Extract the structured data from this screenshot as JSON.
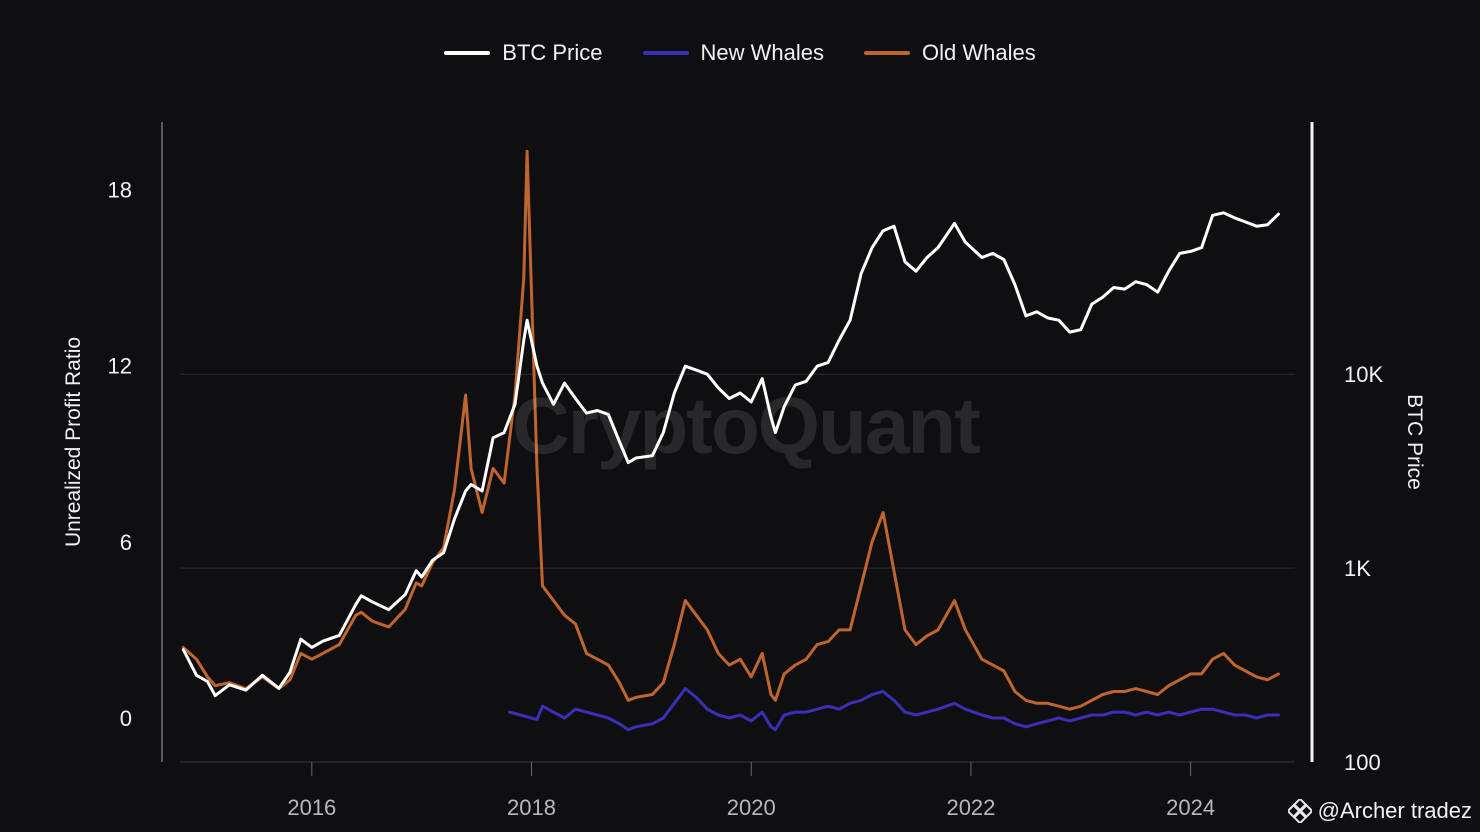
{
  "legend": {
    "items": [
      {
        "label": "BTC Price",
        "color": "#ffffff"
      },
      {
        "label": "New Whales",
        "color": "#3b2fb8"
      },
      {
        "label": "Old Whales",
        "color": "#c0652e"
      }
    ]
  },
  "watermark": "CryptoQuant",
  "credit": {
    "text": "@Archer tradez",
    "icon": "binance-diamond-icon"
  },
  "chart_data": {
    "type": "line",
    "xlabel": "",
    "ylabel": "Unrealized Profit Ratio",
    "y2label": "BTC Price",
    "x_ticks": [
      "2016",
      "2018",
      "2020",
      "2022",
      "2024"
    ],
    "y_ticks": [
      "0",
      "6",
      "12",
      "18"
    ],
    "y2_ticks": [
      "100",
      "1K",
      "10K"
    ],
    "xlim": [
      2014.8,
      2024.95
    ],
    "ylim": [
      -1.5,
      20.3
    ],
    "y2lim_log": [
      100,
      200000
    ],
    "y2_scale": "log",
    "grid": "horizontal",
    "legend_position": "top-center",
    "series": [
      {
        "name": "BTC Price",
        "color": "#ffffff",
        "axis": "right",
        "x": [
          2014.83,
          2014.95,
          2015.05,
          2015.12,
          2015.25,
          2015.4,
          2015.55,
          2015.7,
          2015.8,
          2015.9,
          2016.0,
          2016.1,
          2016.25,
          2016.4,
          2016.45,
          2016.55,
          2016.7,
          2016.85,
          2016.95,
          2017.0,
          2017.1,
          2017.2,
          2017.3,
          2017.4,
          2017.45,
          2017.55,
          2017.65,
          2017.75,
          2017.85,
          2017.93,
          2017.96,
          2018.05,
          2018.1,
          2018.2,
          2018.3,
          2018.4,
          2018.5,
          2018.6,
          2018.7,
          2018.8,
          2018.88,
          2018.95,
          2019.1,
          2019.2,
          2019.3,
          2019.4,
          2019.5,
          2019.6,
          2019.7,
          2019.8,
          2019.9,
          2020.0,
          2020.1,
          2020.18,
          2020.22,
          2020.3,
          2020.4,
          2020.5,
          2020.6,
          2020.7,
          2020.8,
          2020.9,
          2021.0,
          2021.1,
          2021.2,
          2021.3,
          2021.4,
          2021.5,
          2021.6,
          2021.7,
          2021.85,
          2021.95,
          2022.1,
          2022.2,
          2022.3,
          2022.4,
          2022.5,
          2022.6,
          2022.7,
          2022.8,
          2022.9,
          2023.0,
          2023.1,
          2023.2,
          2023.3,
          2023.4,
          2023.5,
          2023.6,
          2023.7,
          2023.8,
          2023.9,
          2024.0,
          2024.1,
          2024.2,
          2024.3,
          2024.4,
          2024.5,
          2024.6,
          2024.7,
          2024.8
        ],
        "y": [
          380,
          280,
          260,
          220,
          250,
          235,
          280,
          240,
          290,
          430,
          390,
          420,
          450,
          650,
          720,
          670,
          610,
          730,
          970,
          900,
          1100,
          1200,
          1800,
          2500,
          2700,
          2500,
          4700,
          5000,
          7000,
          15000,
          19000,
          11000,
          9000,
          7000,
          9000,
          7500,
          6300,
          6500,
          6200,
          4500,
          3500,
          3700,
          3800,
          5000,
          8000,
          11000,
          10500,
          10000,
          8500,
          7500,
          8000,
          7200,
          9500,
          6000,
          5000,
          6800,
          8800,
          9200,
          11000,
          11500,
          15000,
          19000,
          33000,
          45000,
          55000,
          58000,
          38000,
          34000,
          40000,
          45000,
          60000,
          48000,
          40000,
          42000,
          39000,
          29000,
          20000,
          21000,
          19500,
          19000,
          16500,
          17000,
          23000,
          25000,
          28000,
          27500,
          30000,
          29000,
          26500,
          34000,
          42000,
          43000,
          45000,
          66000,
          68000,
          64000,
          61000,
          58000,
          59000,
          67000
        ]
      },
      {
        "name": "Old Whales",
        "color": "#c0652e",
        "axis": "left",
        "x": [
          2014.83,
          2014.95,
          2015.05,
          2015.12,
          2015.25,
          2015.4,
          2015.55,
          2015.7,
          2015.8,
          2015.9,
          2016.0,
          2016.1,
          2016.25,
          2016.4,
          2016.45,
          2016.55,
          2016.7,
          2016.85,
          2016.95,
          2017.0,
          2017.1,
          2017.2,
          2017.3,
          2017.4,
          2017.45,
          2017.55,
          2017.65,
          2017.75,
          2017.85,
          2017.93,
          2017.96,
          2018.05,
          2018.1,
          2018.2,
          2018.3,
          2018.4,
          2018.5,
          2018.6,
          2018.7,
          2018.8,
          2018.88,
          2018.95,
          2019.1,
          2019.2,
          2019.3,
          2019.4,
          2019.5,
          2019.6,
          2019.7,
          2019.8,
          2019.9,
          2020.0,
          2020.1,
          2020.18,
          2020.22,
          2020.3,
          2020.4,
          2020.5,
          2020.6,
          2020.7,
          2020.8,
          2020.9,
          2021.0,
          2021.1,
          2021.2,
          2021.3,
          2021.4,
          2021.5,
          2021.6,
          2021.7,
          2021.85,
          2021.95,
          2022.1,
          2022.2,
          2022.3,
          2022.4,
          2022.5,
          2022.6,
          2022.7,
          2022.8,
          2022.9,
          2023.0,
          2023.1,
          2023.2,
          2023.3,
          2023.4,
          2023.5,
          2023.6,
          2023.7,
          2023.8,
          2023.9,
          2024.0,
          2024.1,
          2024.2,
          2024.3,
          2024.4,
          2024.5,
          2024.6,
          2024.7,
          2024.8
        ],
        "y": [
          2.4,
          2.0,
          1.4,
          1.1,
          1.2,
          1.0,
          1.4,
          1.0,
          1.3,
          2.2,
          2.0,
          2.2,
          2.5,
          3.5,
          3.6,
          3.3,
          3.1,
          3.7,
          4.6,
          4.5,
          5.3,
          5.8,
          7.8,
          11.0,
          8.5,
          7.0,
          8.5,
          8.0,
          11.0,
          15.0,
          19.3,
          8.5,
          4.5,
          4.0,
          3.5,
          3.2,
          2.2,
          2.0,
          1.8,
          1.2,
          0.6,
          0.7,
          0.8,
          1.2,
          2.5,
          4.0,
          3.5,
          3.0,
          2.2,
          1.8,
          2.0,
          1.4,
          2.2,
          0.8,
          0.6,
          1.5,
          1.8,
          2.0,
          2.5,
          2.6,
          3.0,
          3.0,
          4.5,
          6.0,
          7.0,
          5.0,
          3.0,
          2.5,
          2.8,
          3.0,
          4.0,
          3.0,
          2.0,
          1.8,
          1.6,
          0.9,
          0.6,
          0.5,
          0.5,
          0.4,
          0.3,
          0.4,
          0.6,
          0.8,
          0.9,
          0.9,
          1.0,
          0.9,
          0.8,
          1.1,
          1.3,
          1.5,
          1.5,
          2.0,
          2.2,
          1.8,
          1.6,
          1.4,
          1.3,
          1.5
        ]
      },
      {
        "name": "New Whales",
        "color": "#3b2fb8",
        "axis": "left",
        "x": [
          2017.8,
          2017.9,
          2018.0,
          2018.05,
          2018.1,
          2018.2,
          2018.3,
          2018.4,
          2018.5,
          2018.6,
          2018.7,
          2018.8,
          2018.88,
          2018.95,
          2019.1,
          2019.2,
          2019.3,
          2019.4,
          2019.5,
          2019.6,
          2019.7,
          2019.8,
          2019.9,
          2020.0,
          2020.1,
          2020.18,
          2020.22,
          2020.3,
          2020.4,
          2020.5,
          2020.6,
          2020.7,
          2020.8,
          2020.9,
          2021.0,
          2021.1,
          2021.2,
          2021.3,
          2021.4,
          2021.5,
          2021.6,
          2021.7,
          2021.85,
          2021.95,
          2022.1,
          2022.2,
          2022.3,
          2022.4,
          2022.5,
          2022.6,
          2022.7,
          2022.8,
          2022.9,
          2023.0,
          2023.1,
          2023.2,
          2023.3,
          2023.4,
          2023.5,
          2023.6,
          2023.7,
          2023.8,
          2023.9,
          2024.0,
          2024.1,
          2024.2,
          2024.3,
          2024.4,
          2024.5,
          2024.6,
          2024.7,
          2024.8
        ],
        "y": [
          0.2,
          0.1,
          0.0,
          -0.05,
          0.4,
          0.2,
          0.0,
          0.3,
          0.2,
          0.1,
          0.0,
          -0.2,
          -0.4,
          -0.3,
          -0.2,
          0.0,
          0.5,
          1.0,
          0.7,
          0.3,
          0.1,
          0.0,
          0.1,
          -0.1,
          0.2,
          -0.3,
          -0.4,
          0.1,
          0.2,
          0.2,
          0.3,
          0.4,
          0.3,
          0.5,
          0.6,
          0.8,
          0.9,
          0.6,
          0.2,
          0.1,
          0.2,
          0.3,
          0.5,
          0.3,
          0.1,
          0.0,
          0.0,
          -0.2,
          -0.3,
          -0.2,
          -0.1,
          0.0,
          -0.1,
          0.0,
          0.1,
          0.1,
          0.2,
          0.2,
          0.1,
          0.2,
          0.1,
          0.2,
          0.1,
          0.2,
          0.3,
          0.3,
          0.2,
          0.1,
          0.1,
          0.0,
          0.1,
          0.1
        ]
      }
    ]
  }
}
